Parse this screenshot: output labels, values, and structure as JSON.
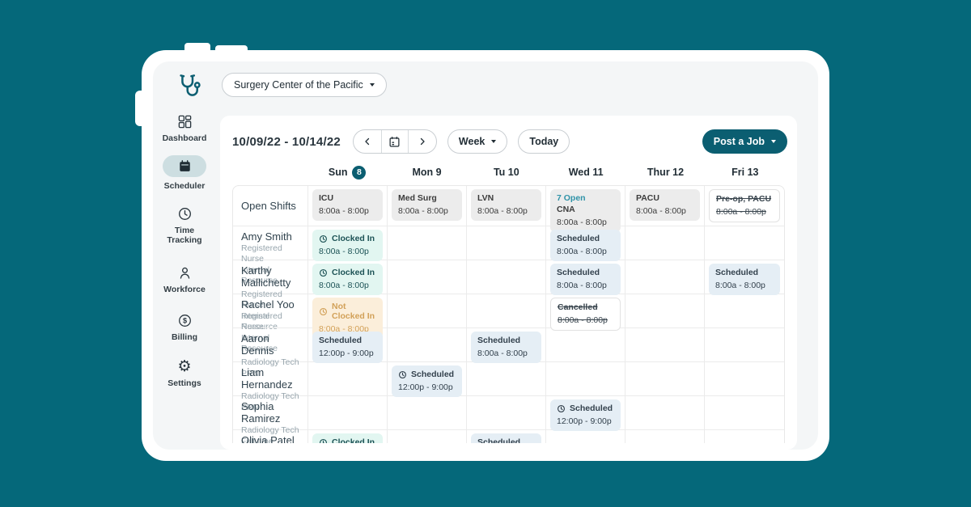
{
  "app": {
    "org_selector_label": "Surgery Center of the Pacific"
  },
  "sidebar": {
    "items": [
      {
        "label": "Dashboard",
        "icon": "dashboard-icon",
        "active": false
      },
      {
        "label": "Scheduler",
        "icon": "calendar-icon",
        "active": true
      },
      {
        "label": "Time Tracking",
        "icon": "clock-icon",
        "active": false
      },
      {
        "label": "Workforce",
        "icon": "person-icon",
        "active": false
      },
      {
        "label": "Billing",
        "icon": "dollar-icon",
        "active": false
      },
      {
        "label": "Settings",
        "icon": "gear-icon",
        "active": false
      }
    ]
  },
  "toolbar": {
    "date_range": "10/09/22 - 10/14/22",
    "prev_label": "previous-week",
    "next_label": "next-week",
    "view_label": "Week",
    "today_label": "Today",
    "post_job_label": "Post a Job"
  },
  "calendar": {
    "day_headers": [
      {
        "label": "Sun",
        "badge": "8"
      },
      {
        "label": "Mon 9"
      },
      {
        "label": "Tu 10"
      },
      {
        "label": "Wed 11"
      },
      {
        "label": "Thur 12"
      },
      {
        "label": "Fri 13"
      }
    ],
    "rows": [
      {
        "name": "Open Shifts",
        "role": "",
        "employment": "",
        "cells": [
          {
            "day": 0,
            "variant": "open",
            "title": "ICU",
            "time": "8:00a - 8:00p"
          },
          {
            "day": 1,
            "variant": "open",
            "title": "Med Surg",
            "time": "8:00a - 8:00p"
          },
          {
            "day": 2,
            "variant": "open",
            "title": "LVN",
            "time": "8:00a - 8:00p"
          },
          {
            "day": 3,
            "variant": "open",
            "count": "7 Open",
            "title": "CNA",
            "time": "8:00a - 8:00p"
          },
          {
            "day": 4,
            "variant": "open",
            "title": "PACU",
            "time": "8:00a - 8:00p"
          },
          {
            "day": 5,
            "variant": "struck",
            "title": "Pre-op, PACU",
            "time": "8:00a - 8:00p"
          }
        ]
      },
      {
        "name": "Amy Smith",
        "role": "Registered Nurse",
        "employment": "Internal Resource",
        "cells": [
          {
            "day": 0,
            "variant": "clocked-in",
            "icon": true,
            "title": "Clocked In",
            "time": "8:00a - 8:00p"
          },
          {
            "day": 3,
            "variant": "scheduled",
            "title": "Scheduled",
            "time": "8:00a - 8:00p"
          }
        ]
      },
      {
        "name": "Karthy Mallichetty",
        "role": "Registered Nurse",
        "employment": "Internal Resource",
        "cells": [
          {
            "day": 0,
            "variant": "clocked-in",
            "icon": true,
            "title": "Clocked In",
            "time": "8:00a - 8:00p"
          },
          {
            "day": 3,
            "variant": "scheduled",
            "title": "Scheduled",
            "time": "8:00a - 8:00p"
          },
          {
            "day": 5,
            "variant": "scheduled",
            "title": "Scheduled",
            "time": "8:00a - 8:00p"
          }
        ]
      },
      {
        "name": "Rachel Yoo",
        "role": "Registered Nurse",
        "employment": "Internal Resource",
        "cells": [
          {
            "day": 0,
            "variant": "not-clocked-in",
            "icon": true,
            "title": "Not Clocked In",
            "time": "8:00a - 8:00p"
          },
          {
            "day": 3,
            "variant": "cancelled",
            "title": "Cancelled",
            "time": "8:00a - 8:00p"
          }
        ]
      },
      {
        "name": "Aaron Dennis",
        "role": "Radiology Tech",
        "employment": "PRN",
        "cells": [
          {
            "day": 0,
            "variant": "scheduled",
            "title": "Scheduled",
            "time": "12:00p - 9:00p"
          },
          {
            "day": 2,
            "variant": "scheduled",
            "title": "Scheduled",
            "time": "8:00a - 8:00p"
          }
        ]
      },
      {
        "name": "Liam Hernandez",
        "role": "Radiology Tech",
        "employment": "PRN",
        "cells": [
          {
            "day": 1,
            "variant": "scheduled",
            "icon": true,
            "title": "Scheduled",
            "time": "12:00p - 9:00p"
          }
        ]
      },
      {
        "name": "Sophia Ramirez",
        "role": "Radiology Tech",
        "employment": "Full time",
        "cells": [
          {
            "day": 3,
            "variant": "scheduled",
            "icon": true,
            "title": "Scheduled",
            "time": "12:00p - 9:00p"
          }
        ]
      },
      {
        "name": "Olivia Patel",
        "role": "",
        "employment": "",
        "cells": [
          {
            "day": 0,
            "variant": "clocked-in",
            "icon": true,
            "title": "Clocked In",
            "time": ""
          },
          {
            "day": 2,
            "variant": "scheduled",
            "title": "Scheduled",
            "time": ""
          }
        ]
      }
    ]
  },
  "colors": {
    "background_teal": "#05687A",
    "brand_teal": "#0B5E71",
    "active_nav_pill": "#CDDEE1",
    "open_shift_bg": "#ECECEC",
    "clocked_in_bg": "#E2F6F1",
    "clocked_in_text": "#1D5356",
    "not_clocked_in_bg": "#FBEEDA",
    "not_clocked_in_text": "#D2A159",
    "scheduled_bg": "#E5EEF5",
    "scheduled_text": "#33414D",
    "open_count_text": "#2F93A8"
  }
}
